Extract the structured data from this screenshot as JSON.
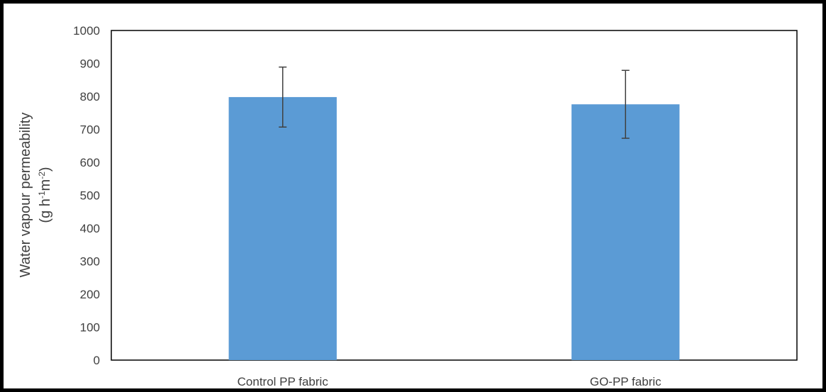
{
  "chart_data": {
    "type": "bar",
    "categories": [
      "Control PP fabric",
      "GO-PP fabric"
    ],
    "values": [
      798,
      776
    ],
    "error": [
      91,
      103
    ],
    "ylabel_line1": "Water vapour permeability",
    "ylabel_line2": {
      "open": "(g h",
      "sup1": "-1",
      "mid": "m",
      "sup2": "-2",
      "close": ")"
    },
    "ylim": [
      0,
      1000
    ],
    "yticks": [
      0,
      100,
      200,
      300,
      400,
      500,
      600,
      700,
      800,
      900,
      1000
    ],
    "grid": false,
    "legend": "none",
    "bar_color": "#5b9bd5",
    "errorbar_color": "#404040",
    "axis_color": "#404040"
  }
}
